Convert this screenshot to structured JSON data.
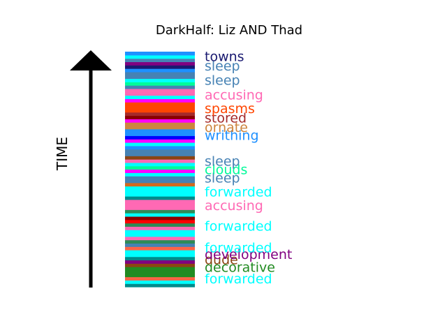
{
  "chart_data": {
    "type": "stacked-bar-timeline",
    "title": "DarkHalf: Liz AND Thad",
    "ylabel": "TIME",
    "stripes_bottom_to_top": [
      "#008b8b",
      "#00ffff",
      "#ff6347",
      "#228b22",
      "#228b22",
      "#228b22",
      "#8b4513",
      "#800080",
      "#008b8b",
      "#00ffff",
      "#00ffff",
      "#ff6347",
      "#4682b4",
      "#2e8b57",
      "#ff69b4",
      "#00ffff",
      "#00ffff",
      "#ff69b4",
      "#2e8b57",
      "#ff0000",
      "#8b0000",
      "#00ffff",
      "#2e8b57",
      "#ff69b4",
      "#ff69b4",
      "#ff69b4",
      "#008b8b",
      "#00ffff",
      "#00ffff",
      "#00ffff",
      "#d2691e",
      "#4682b4",
      "#4682b4",
      "#00ffff",
      "#ff00ff",
      "#00fa9a",
      "#00ffff",
      "#ff69b4",
      "#8b4513",
      "#4682b4",
      "#4682b4",
      "#1e90ff",
      "#00ffff",
      "#ff00ff",
      "#0000ff",
      "#1e90ff",
      "#1e90ff",
      "#cd853f",
      "#cd853f",
      "#ff00ff",
      "#8b0000",
      "#a52a2a",
      "#ff4500",
      "#ff4500",
      "#ff4500",
      "#ff00ff",
      "#00ffff",
      "#ff69b4",
      "#ff69b4",
      "#4682b4",
      "#00fa9a",
      "#00ffff",
      "#4682b4",
      "#4682b4",
      "#1e90ff",
      "#191970",
      "#800080",
      "#4682b4",
      "#00ffff",
      "#1e90ff"
    ],
    "labels": [
      {
        "text": "forwarded",
        "color": "#00ffff",
        "pos": 0.035
      },
      {
        "text": "decorative",
        "color": "#228b22",
        "pos": 0.085
      },
      {
        "text": "dude",
        "color": "#8b4513",
        "pos": 0.117
      },
      {
        "text": "development",
        "color": "#800080",
        "pos": 0.14
      },
      {
        "text": "forwarded",
        "color": "#00ffff",
        "pos": 0.167
      },
      {
        "text": "forwarded",
        "color": "#00ffff",
        "pos": 0.26
      },
      {
        "text": "accusing",
        "color": "#ff69b4",
        "pos": 0.347
      },
      {
        "text": "forwarded",
        "color": "#00ffff",
        "pos": 0.405
      },
      {
        "text": "sleep",
        "color": "#4682b4",
        "pos": 0.465
      },
      {
        "text": "clouds",
        "color": "#00fa9a",
        "pos": 0.5
      },
      {
        "text": "sleep",
        "color": "#4682b4",
        "pos": 0.535
      },
      {
        "text": "writhing",
        "color": "#1e90ff",
        "pos": 0.645
      },
      {
        "text": "ornate",
        "color": "#cd853f",
        "pos": 0.68
      },
      {
        "text": "stored",
        "color": "#a52a2a",
        "pos": 0.72
      },
      {
        "text": "spasms",
        "color": "#ff4500",
        "pos": 0.76
      },
      {
        "text": "accusing",
        "color": "#ff69b4",
        "pos": 0.818
      },
      {
        "text": "sleep",
        "color": "#4682b4",
        "pos": 0.88
      },
      {
        "text": "sleep",
        "color": "#4682b4",
        "pos": 0.94
      },
      {
        "text": "towns",
        "color": "#191970",
        "pos": 0.98
      }
    ]
  }
}
